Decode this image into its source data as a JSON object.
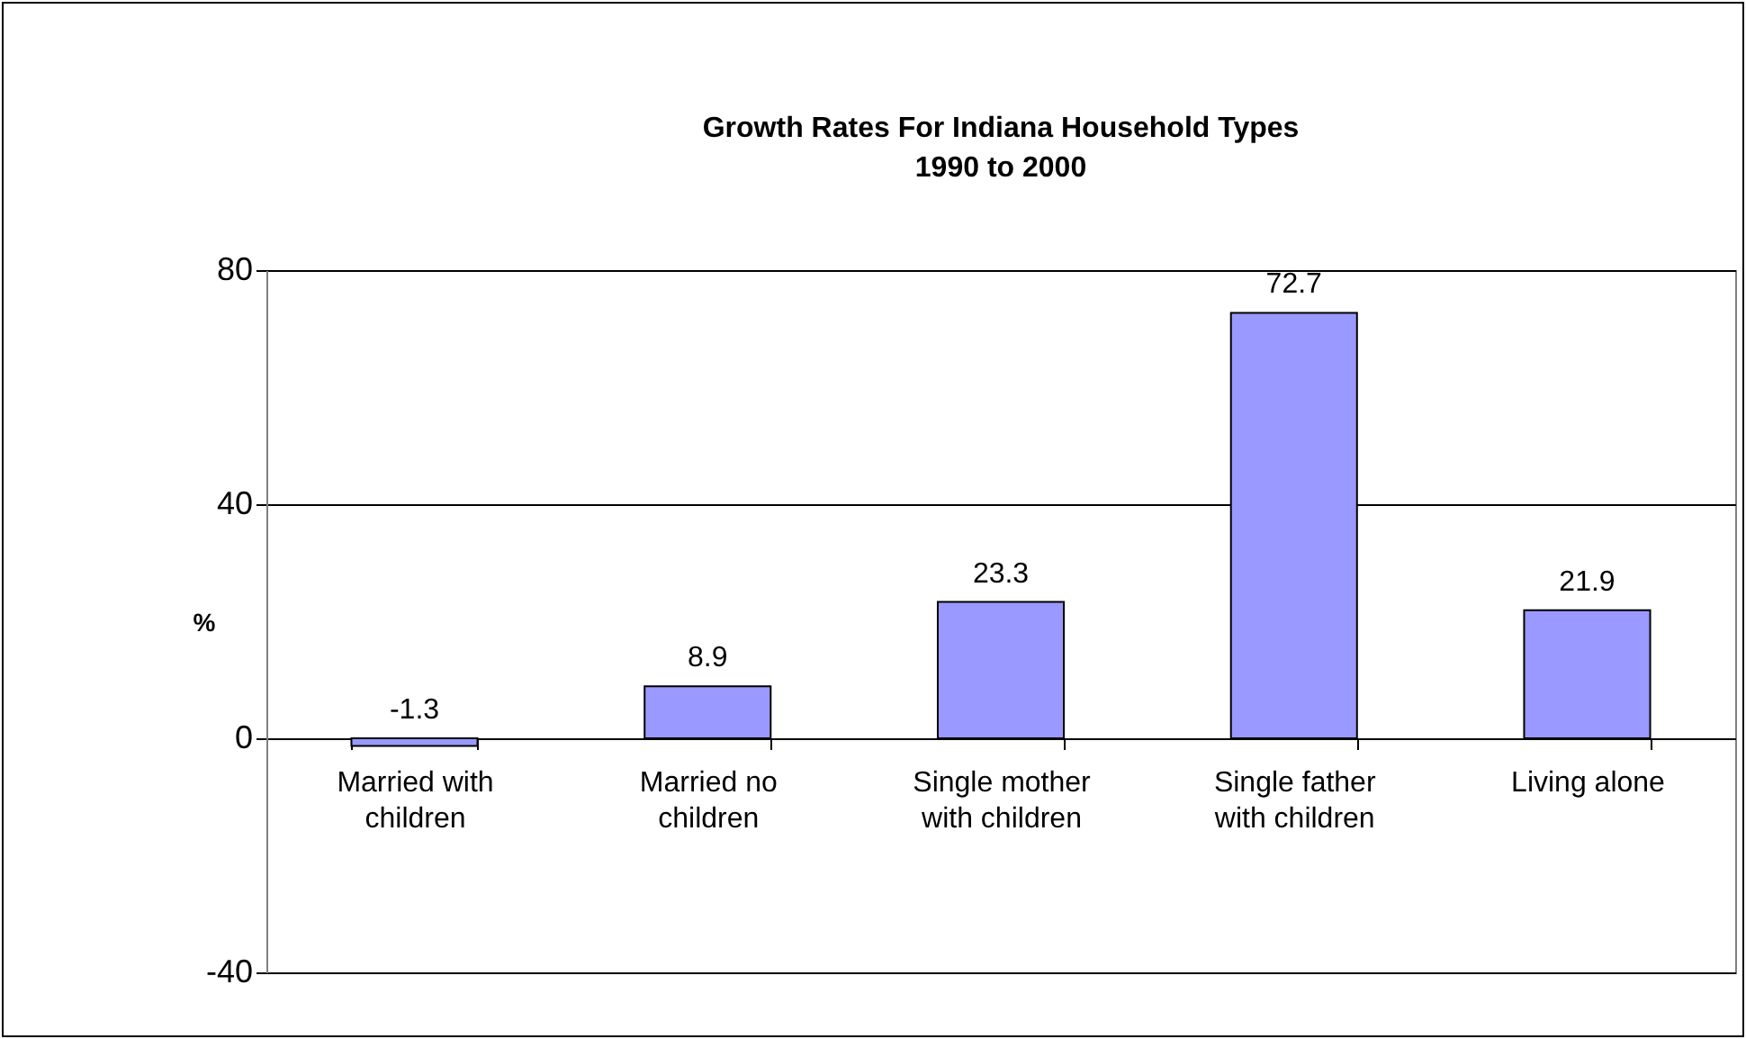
{
  "chart_data": {
    "type": "bar",
    "title": "Growth Rates For Indiana Household Types",
    "subtitle": "1990 to 2000",
    "ylabel": "%",
    "categories": [
      "Married with children",
      "Married no children",
      "Single mother with children",
      "Single father with children",
      "Living alone"
    ],
    "values": [
      -1.3,
      8.9,
      23.3,
      72.7,
      21.9
    ],
    "color": "#9999ff",
    "ylim": [
      -40,
      80
    ],
    "yticks": [
      -40,
      0,
      40,
      80
    ],
    "grid": "y",
    "data_labels": true
  }
}
